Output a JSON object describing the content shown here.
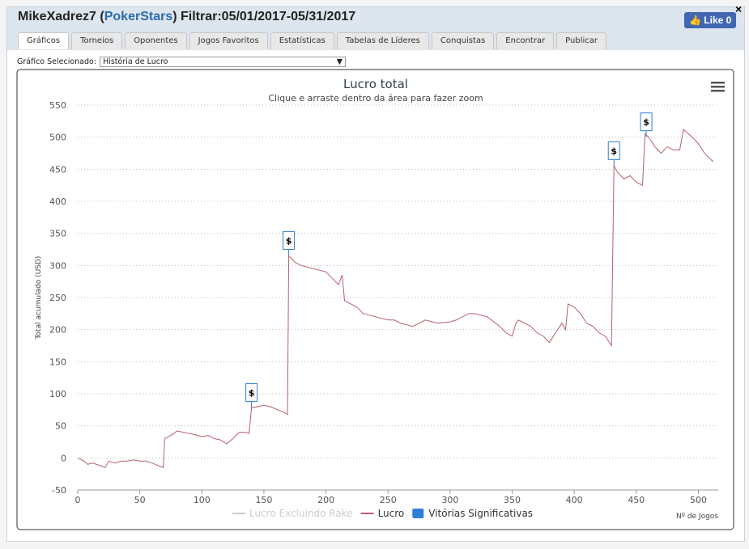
{
  "header": {
    "user": "MikeXadrez7 (",
    "site": "PokerStars",
    "filter": ") Filtrar:05/01/2017-05/31/2017",
    "like": "Like 0"
  },
  "tabs": [
    "Gráficos",
    "Torneios",
    "Oponentes",
    "Jogos Favoritos",
    "Estatísticas",
    "Tabelas de Líderes",
    "Conquistas",
    "Encontrar",
    "Publicar"
  ],
  "selector": {
    "label": "Gráfico Selecionado:",
    "value": "História de Lucro"
  },
  "chart_data": {
    "type": "line",
    "title": "Lucro total",
    "subtitle": "Clique e arraste dentro da área para fazer zoom",
    "y_label": "Total acumulado (USD)",
    "x_label": "Nº de Jogos",
    "xlim": [
      0,
      516
    ],
    "ylim": [
      -50,
      550
    ],
    "xticks": [
      0,
      50,
      100,
      150,
      200,
      250,
      300,
      350,
      400,
      450,
      500
    ],
    "yticks": [
      -50,
      0,
      50,
      100,
      150,
      200,
      250,
      300,
      350,
      400,
      450,
      500,
      550
    ],
    "grid": true,
    "series": [
      {
        "name": "Lucro Excluindo Rake",
        "color": "#cccccc",
        "visible": false
      },
      {
        "name": "Lucro",
        "color": "#b5616a",
        "x": [
          0,
          5,
          8,
          12,
          18,
          22,
          25,
          30,
          35,
          40,
          45,
          50,
          55,
          60,
          65,
          69,
          70,
          75,
          80,
          85,
          90,
          95,
          100,
          105,
          110,
          115,
          120,
          125,
          130,
          135,
          138,
          140,
          145,
          150,
          155,
          160,
          165,
          169,
          170,
          175,
          180,
          190,
          200,
          205,
          210,
          213,
          215,
          220,
          225,
          230,
          240,
          250,
          255,
          260,
          270,
          280,
          290,
          300,
          305,
          310,
          315,
          320,
          330,
          340,
          345,
          350,
          353,
          355,
          360,
          365,
          370,
          375,
          380,
          385,
          390,
          393,
          395,
          400,
          405,
          410,
          415,
          420,
          425,
          430,
          432,
          435,
          440,
          445,
          450,
          455,
          457,
          460,
          465,
          470,
          475,
          480,
          485,
          488,
          495,
          500,
          505,
          510,
          512
        ],
        "values": [
          0,
          -5,
          -10,
          -8,
          -12,
          -15,
          -5,
          -8,
          -5,
          -5,
          -3,
          -5,
          -5,
          -8,
          -12,
          -15,
          30,
          35,
          42,
          40,
          38,
          36,
          33,
          35,
          30,
          28,
          22,
          30,
          40,
          40,
          38,
          78,
          80,
          82,
          80,
          76,
          72,
          68,
          315,
          305,
          300,
          295,
          290,
          280,
          270,
          285,
          245,
          240,
          235,
          225,
          220,
          215,
          215,
          210,
          205,
          215,
          210,
          212,
          215,
          220,
          225,
          225,
          220,
          205,
          195,
          190,
          210,
          215,
          210,
          205,
          195,
          190,
          180,
          195,
          210,
          200,
          240,
          235,
          225,
          210,
          205,
          195,
          190,
          175,
          455,
          445,
          435,
          440,
          430,
          425,
          505,
          500,
          485,
          475,
          485,
          480,
          480,
          512,
          500,
          490,
          475,
          465,
          462
        ]
      }
    ],
    "flags": {
      "name": "Vitórias Significativas",
      "color": "#2f7ed8",
      "label": "$",
      "x": [
        140,
        170,
        432,
        458
      ]
    }
  }
}
